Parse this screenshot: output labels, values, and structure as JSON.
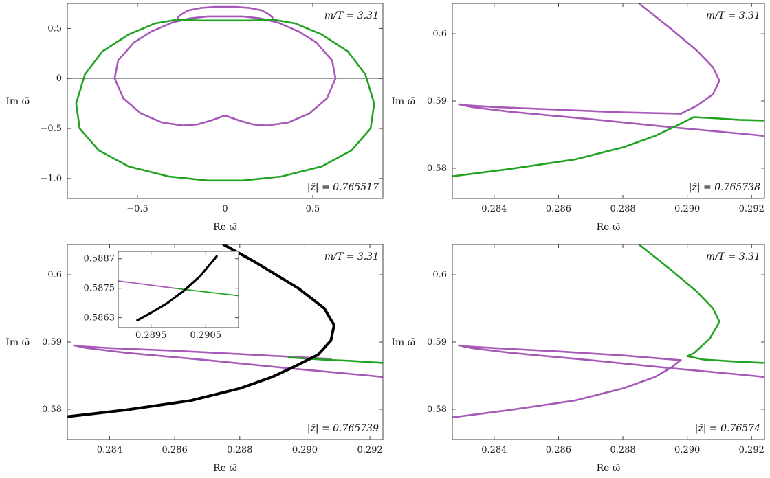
{
  "colors": {
    "purple": "#a659b8",
    "green": "#21a321",
    "black": "#000000",
    "axis": "#777777"
  },
  "chart_data": [
    {
      "type": "scatter",
      "panel": "top-left",
      "xlabel": "Re ω̄",
      "ylabel": "Im ω̄",
      "xlim": [
        -0.9,
        0.9
      ],
      "ylim": [
        -1.2,
        0.75
      ],
      "xticks": [
        -0.5,
        0,
        0.5
      ],
      "xtick_labels": [
        "−0.5",
        "0",
        "0.5"
      ],
      "yticks": [
        -1.0,
        -0.5,
        0,
        0.5
      ],
      "ytick_labels": [
        "−1.0",
        "−0.5",
        "0",
        "0.5"
      ],
      "axes_lines": true,
      "annotation_top": "m/T = 3.31",
      "annotation_bottom": "|z̄| = 0.765517",
      "series": [
        {
          "color": "purple",
          "points": [
            [
              0.27,
              0.59
            ],
            [
              0.27,
              0.61
            ],
            [
              0.25,
              0.64
            ],
            [
              0.21,
              0.68
            ],
            [
              0.14,
              0.705
            ],
            [
              0.06,
              0.715
            ],
            [
              0,
              0.715
            ],
            [
              -0.06,
              0.715
            ],
            [
              -0.14,
              0.705
            ],
            [
              -0.21,
              0.68
            ],
            [
              -0.25,
              0.64
            ],
            [
              -0.27,
              0.61
            ],
            [
              -0.27,
              0.59
            ]
          ]
        },
        {
          "color": "purple",
          "points": [
            [
              0,
              -0.37
            ],
            [
              0.08,
              -0.42
            ],
            [
              0.16,
              -0.46
            ],
            [
              0.24,
              -0.47
            ],
            [
              0.36,
              -0.44
            ],
            [
              0.48,
              -0.35
            ],
            [
              0.58,
              -0.2
            ],
            [
              0.63,
              0
            ],
            [
              0.61,
              0.18
            ],
            [
              0.52,
              0.36
            ],
            [
              0.42,
              0.47
            ],
            [
              0.3,
              0.56
            ],
            [
              0.2,
              0.6
            ],
            [
              0.1,
              0.62
            ],
            [
              0,
              0.62
            ],
            [
              -0.1,
              0.62
            ],
            [
              -0.2,
              0.6
            ],
            [
              -0.3,
              0.56
            ],
            [
              -0.42,
              0.47
            ],
            [
              -0.52,
              0.36
            ],
            [
              -0.61,
              0.18
            ],
            [
              -0.63,
              0
            ],
            [
              -0.58,
              -0.2
            ],
            [
              -0.48,
              -0.35
            ],
            [
              -0.36,
              -0.44
            ],
            [
              -0.24,
              -0.47
            ],
            [
              -0.16,
              -0.46
            ],
            [
              -0.08,
              -0.42
            ],
            [
              0,
              -0.37
            ]
          ]
        },
        {
          "color": "green",
          "points": [
            [
              0,
              0.58
            ],
            [
              0.15,
              0.58
            ],
            [
              0.27,
              0.59
            ],
            [
              0.4,
              0.55
            ],
            [
              0.55,
              0.44
            ],
            [
              0.7,
              0.27
            ],
            [
              0.8,
              0.04
            ],
            [
              0.85,
              -0.25
            ],
            [
              0.83,
              -0.5
            ],
            [
              0.72,
              -0.72
            ],
            [
              0.55,
              -0.88
            ],
            [
              0.32,
              -0.98
            ],
            [
              0.1,
              -1.02
            ],
            [
              0,
              -1.02
            ],
            [
              -0.1,
              -1.02
            ],
            [
              -0.32,
              -0.98
            ],
            [
              -0.55,
              -0.88
            ],
            [
              -0.72,
              -0.72
            ],
            [
              -0.83,
              -0.5
            ],
            [
              -0.85,
              -0.25
            ],
            [
              -0.8,
              0.04
            ],
            [
              -0.7,
              0.27
            ],
            [
              -0.55,
              0.44
            ],
            [
              -0.4,
              0.55
            ],
            [
              -0.27,
              0.59
            ],
            [
              -0.15,
              0.58
            ],
            [
              0,
              0.58
            ]
          ]
        }
      ]
    },
    {
      "type": "scatter",
      "panel": "top-right",
      "xlabel": "Re ω̄",
      "ylabel": "Im ω̄",
      "xlim": [
        0.2827,
        0.2924
      ],
      "ylim": [
        0.5755,
        0.6045
      ],
      "xticks": [
        0.284,
        0.286,
        0.288,
        0.29,
        0.292
      ],
      "xtick_labels": [
        "0.284",
        "0.286",
        "0.288",
        "0.290",
        "0.292"
      ],
      "yticks": [
        0.58,
        0.59,
        0.6
      ],
      "ytick_labels": [
        "0.58",
        "0.59",
        "0.6"
      ],
      "annotation_top": "m/T = 3.31",
      "annotation_bottom": "|z̄| = 0.765738",
      "series": [
        {
          "color": "purple",
          "points": [
            [
              0.2885,
              0.6045
            ],
            [
              0.2895,
              0.6007
            ],
            [
              0.2903,
              0.5975
            ],
            [
              0.2908,
              0.595
            ],
            [
              0.291,
              0.593
            ],
            [
              0.2908,
              0.591
            ],
            [
              0.2903,
              0.5893
            ],
            [
              0.2898,
              0.5881
            ]
          ]
        },
        {
          "color": "purple",
          "points": [
            [
              0.2898,
              0.5881
            ],
            [
              0.288,
              0.5883
            ],
            [
              0.286,
              0.5887
            ],
            [
              0.284,
              0.5891
            ],
            [
              0.283,
              0.5894
            ],
            [
              0.2829,
              0.5895
            ],
            [
              0.2833,
              0.5891
            ],
            [
              0.2845,
              0.5884
            ],
            [
              0.287,
              0.5873
            ],
            [
              0.2895,
              0.5861
            ],
            [
              0.292,
              0.585
            ],
            [
              0.2924,
              0.5848
            ]
          ]
        },
        {
          "color": "green",
          "points": [
            [
              0.2827,
              0.5788
            ],
            [
              0.2845,
              0.5799
            ],
            [
              0.2865,
              0.5813
            ],
            [
              0.288,
              0.5831
            ],
            [
              0.289,
              0.5848
            ],
            [
              0.2897,
              0.5864
            ],
            [
              0.2902,
              0.5876
            ],
            [
              0.291,
              0.5874
            ],
            [
              0.2916,
              0.5872
            ],
            [
              0.2924,
              0.5871
            ]
          ]
        }
      ]
    },
    {
      "type": "scatter",
      "panel": "bottom-left",
      "xlabel": "Re ω̄",
      "ylabel": "Im ω̄",
      "xlim": [
        0.2827,
        0.2924
      ],
      "ylim": [
        0.5755,
        0.6045
      ],
      "xticks": [
        0.284,
        0.286,
        0.288,
        0.29,
        0.292
      ],
      "xtick_labels": [
        "0.284",
        "0.286",
        "0.288",
        "0.290",
        "0.292"
      ],
      "yticks": [
        0.58,
        0.59,
        0.6
      ],
      "ytick_labels": [
        "0.58",
        "0.59",
        "0.6"
      ],
      "annotation_top": "m/T = 3.31",
      "annotation_bottom": "|z̄| = 0.765739",
      "series": [
        {
          "color": "purple",
          "points": [
            [
              0.2908,
              0.5875
            ],
            [
              0.288,
              0.5882
            ],
            [
              0.286,
              0.5887
            ],
            [
              0.284,
              0.5891
            ],
            [
              0.283,
              0.5894
            ],
            [
              0.2829,
              0.5895
            ],
            [
              0.2833,
              0.5891
            ],
            [
              0.2845,
              0.5884
            ],
            [
              0.287,
              0.5873
            ],
            [
              0.2895,
              0.5861
            ],
            [
              0.292,
              0.585
            ],
            [
              0.2924,
              0.5848
            ]
          ]
        },
        {
          "color": "green",
          "points": [
            [
              0.2895,
              0.5877
            ],
            [
              0.2905,
              0.5874
            ],
            [
              0.2914,
              0.5872
            ],
            [
              0.2924,
              0.5869
            ]
          ]
        },
        {
          "color": "black",
          "points": [
            [
              0.2827,
              0.5789
            ],
            [
              0.2845,
              0.5799
            ],
            [
              0.2865,
              0.5813
            ],
            [
              0.288,
              0.5831
            ],
            [
              0.289,
              0.5848
            ],
            [
              0.2897,
              0.5864
            ],
            [
              0.2904,
              0.5881
            ],
            [
              0.2908,
              0.5902
            ],
            [
              0.2909,
              0.5925
            ],
            [
              0.2906,
              0.595
            ],
            [
              0.2898,
              0.598
            ],
            [
              0.2885,
              0.6018
            ],
            [
              0.2875,
              0.6045
            ]
          ]
        }
      ],
      "inset": {
        "xlim": [
          0.2889,
          0.2911
        ],
        "ylim": [
          0.5859,
          0.589
        ],
        "xticks": [
          0.2895,
          0.2905
        ],
        "xtick_labels": [
          "0.2895",
          "0.2905"
        ],
        "yticks": [
          0.5863,
          0.5875,
          0.5887
        ],
        "ytick_labels": [
          "0.5863",
          "0.5875",
          "0.5887"
        ],
        "series": [
          {
            "color": "purple",
            "points": [
              [
                0.2889,
                0.5878
              ],
              [
                0.29,
                0.58748
              ]
            ]
          },
          {
            "color": "green",
            "points": [
              [
                0.29,
                0.58748
              ],
              [
                0.2911,
                0.5872
              ]
            ]
          },
          {
            "color": "black",
            "points": [
              [
                0.28925,
                0.5862
              ],
              [
                0.2895,
                0.5865
              ],
              [
                0.2898,
                0.5869
              ],
              [
                0.2901,
                0.5874
              ],
              [
                0.2904,
                0.588
              ],
              [
                0.2907,
                0.5888
              ]
            ]
          }
        ]
      }
    },
    {
      "type": "scatter",
      "panel": "bottom-right",
      "xlabel": "Re ω̄",
      "ylabel": "Im ω̄",
      "xlim": [
        0.2827,
        0.2924
      ],
      "ylim": [
        0.5755,
        0.6045
      ],
      "xticks": [
        0.284,
        0.286,
        0.288,
        0.29,
        0.292
      ],
      "xtick_labels": [
        "0.284",
        "0.286",
        "0.288",
        "0.290",
        "0.292"
      ],
      "yticks": [
        0.58,
        0.59,
        0.6
      ],
      "ytick_labels": [
        "0.58",
        "0.59",
        "0.6"
      ],
      "annotation_top": "m/T = 3.31",
      "annotation_bottom": "|z̄| = 0.76574",
      "series": [
        {
          "color": "green",
          "points": [
            [
              0.2885,
              0.6045
            ],
            [
              0.2895,
              0.6007
            ],
            [
              0.2903,
              0.5975
            ],
            [
              0.2908,
              0.595
            ],
            [
              0.291,
              0.593
            ],
            [
              0.2907,
              0.5905
            ],
            [
              0.2902,
              0.5883
            ],
            [
              0.29,
              0.5879
            ],
            [
              0.2905,
              0.5874
            ],
            [
              0.2915,
              0.5871
            ],
            [
              0.2924,
              0.5869
            ]
          ]
        },
        {
          "color": "purple",
          "points": [
            [
              0.2898,
              0.5873
            ],
            [
              0.288,
              0.588
            ],
            [
              0.286,
              0.5886
            ],
            [
              0.284,
              0.5891
            ],
            [
              0.283,
              0.5894
            ],
            [
              0.2829,
              0.5895
            ],
            [
              0.2833,
              0.5891
            ],
            [
              0.2845,
              0.5884
            ],
            [
              0.287,
              0.5873
            ],
            [
              0.2895,
              0.5861
            ],
            [
              0.292,
              0.585
            ],
            [
              0.2924,
              0.5848
            ]
          ]
        },
        {
          "color": "purple",
          "points": [
            [
              0.2827,
              0.5788
            ],
            [
              0.2845,
              0.5799
            ],
            [
              0.2865,
              0.5813
            ],
            [
              0.288,
              0.5831
            ],
            [
              0.289,
              0.5848
            ],
            [
              0.2895,
              0.5862
            ],
            [
              0.2898,
              0.5873
            ]
          ]
        }
      ]
    }
  ]
}
